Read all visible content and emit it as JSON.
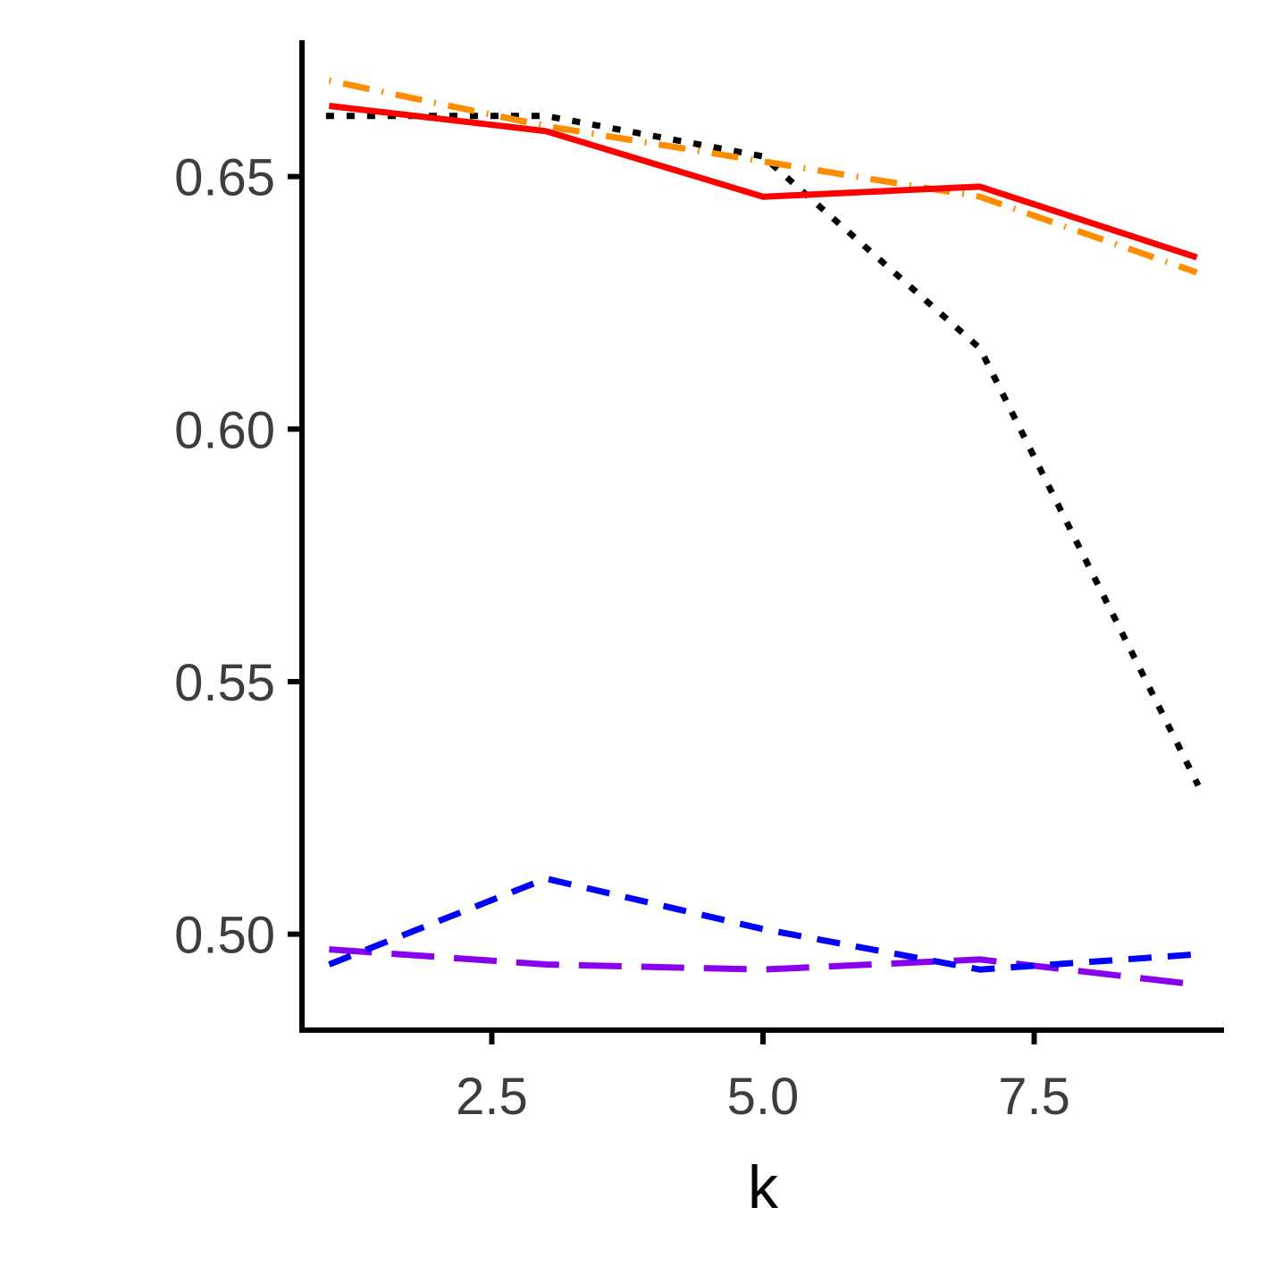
{
  "chart_data": {
    "type": "line",
    "title": "",
    "xlabel": "k",
    "ylabel": "",
    "xlim": [
      0.75,
      9.25
    ],
    "ylim": [
      0.481,
      0.677
    ],
    "x_ticks": [
      2.5,
      5.0,
      7.5
    ],
    "x_tick_labels": [
      "2.5",
      "5.0",
      "7.5"
    ],
    "y_ticks": [
      0.5,
      0.55,
      0.6,
      0.65
    ],
    "y_tick_labels": [
      "0.50",
      "0.55",
      "0.60",
      "0.65"
    ],
    "grid": false,
    "legend": "none",
    "x": [
      1,
      3,
      5,
      7,
      9
    ],
    "series": [
      {
        "color": "#ff0000",
        "line_style": "solid",
        "values": [
          0.664,
          0.659,
          0.646,
          0.648,
          0.634
        ]
      },
      {
        "color": "#000000",
        "line_style": "dotted",
        "values": [
          0.662,
          0.662,
          0.654,
          0.616,
          0.53
        ]
      },
      {
        "color": "#ff8c00",
        "line_style": "dotdash",
        "values": [
          0.669,
          0.66,
          0.653,
          0.646,
          0.631
        ]
      },
      {
        "color": "#0000ff",
        "line_style": "dashed",
        "values": [
          0.494,
          0.511,
          0.501,
          0.493,
          0.496
        ]
      },
      {
        "color": "#8800ee",
        "line_style": "longdash",
        "values": [
          0.497,
          0.494,
          0.493,
          0.495,
          0.49
        ]
      }
    ]
  }
}
